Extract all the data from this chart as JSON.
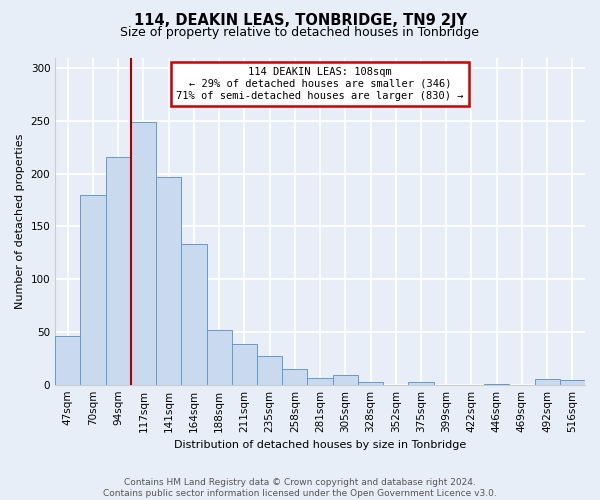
{
  "title": "114, DEAKIN LEAS, TONBRIDGE, TN9 2JY",
  "subtitle": "Size of property relative to detached houses in Tonbridge",
  "xlabel": "Distribution of detached houses by size in Tonbridge",
  "ylabel": "Number of detached properties",
  "bar_labels": [
    "47sqm",
    "70sqm",
    "94sqm",
    "117sqm",
    "141sqm",
    "164sqm",
    "188sqm",
    "211sqm",
    "235sqm",
    "258sqm",
    "281sqm",
    "305sqm",
    "328sqm",
    "352sqm",
    "375sqm",
    "399sqm",
    "422sqm",
    "446sqm",
    "469sqm",
    "492sqm",
    "516sqm"
  ],
  "bar_values": [
    46,
    180,
    216,
    249,
    197,
    133,
    52,
    39,
    27,
    15,
    6,
    9,
    3,
    0,
    3,
    0,
    0,
    1,
    0,
    5,
    4
  ],
  "bar_color": "#c9d9ee",
  "bar_edge_color": "#6699cc",
  "vline_color": "#aa0000",
  "vline_x": 2.5,
  "annotation_title": "114 DEAKIN LEAS: 108sqm",
  "annotation_line1": "← 29% of detached houses are smaller (346)",
  "annotation_line2": "71% of semi-detached houses are larger (830) →",
  "annotation_box_color": "#ffffff",
  "annotation_box_edge_color": "#cc0000",
  "ylim": [
    0,
    310
  ],
  "yticks": [
    0,
    50,
    100,
    150,
    200,
    250,
    300
  ],
  "footer_line1": "Contains HM Land Registry data © Crown copyright and database right 2024.",
  "footer_line2": "Contains public sector information licensed under the Open Government Licence v3.0.",
  "background_color": "#e8eef8",
  "plot_bg_color": "#e8eef8",
  "title_fontsize": 10.5,
  "subtitle_fontsize": 9,
  "axis_label_fontsize": 8,
  "tick_fontsize": 7.5,
  "footer_fontsize": 6.5
}
